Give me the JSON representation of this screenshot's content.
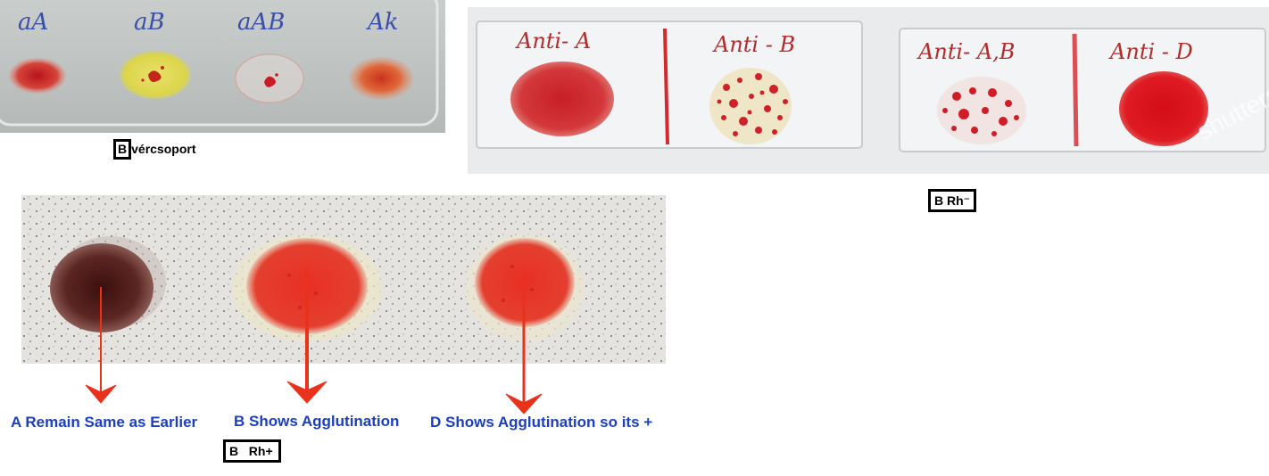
{
  "photo_top_left": {
    "labels": [
      "aA",
      "aB",
      "aAB",
      "Ak"
    ]
  },
  "photo_top_right": {
    "slide1_labels": [
      "Anti- A",
      "Anti - B"
    ],
    "slide2_labels": [
      "Anti- A,B",
      "Anti - D"
    ],
    "watermark": "shutterstock"
  },
  "photo_bottom": {
    "results": [
      "A Remain Same as Earlier",
      "B Shows Agglutination",
      "D Shows Agglutination so its +"
    ],
    "result_color": "#1b3fbf",
    "arrow_color": "#e8321c"
  },
  "captions": {
    "vercsoport_letter": "B",
    "vercsoport_text": "vércsoport",
    "rh_negative": "B Rh⁻",
    "rh_positive_letter": "B",
    "rh_positive_text": "Rh+"
  }
}
